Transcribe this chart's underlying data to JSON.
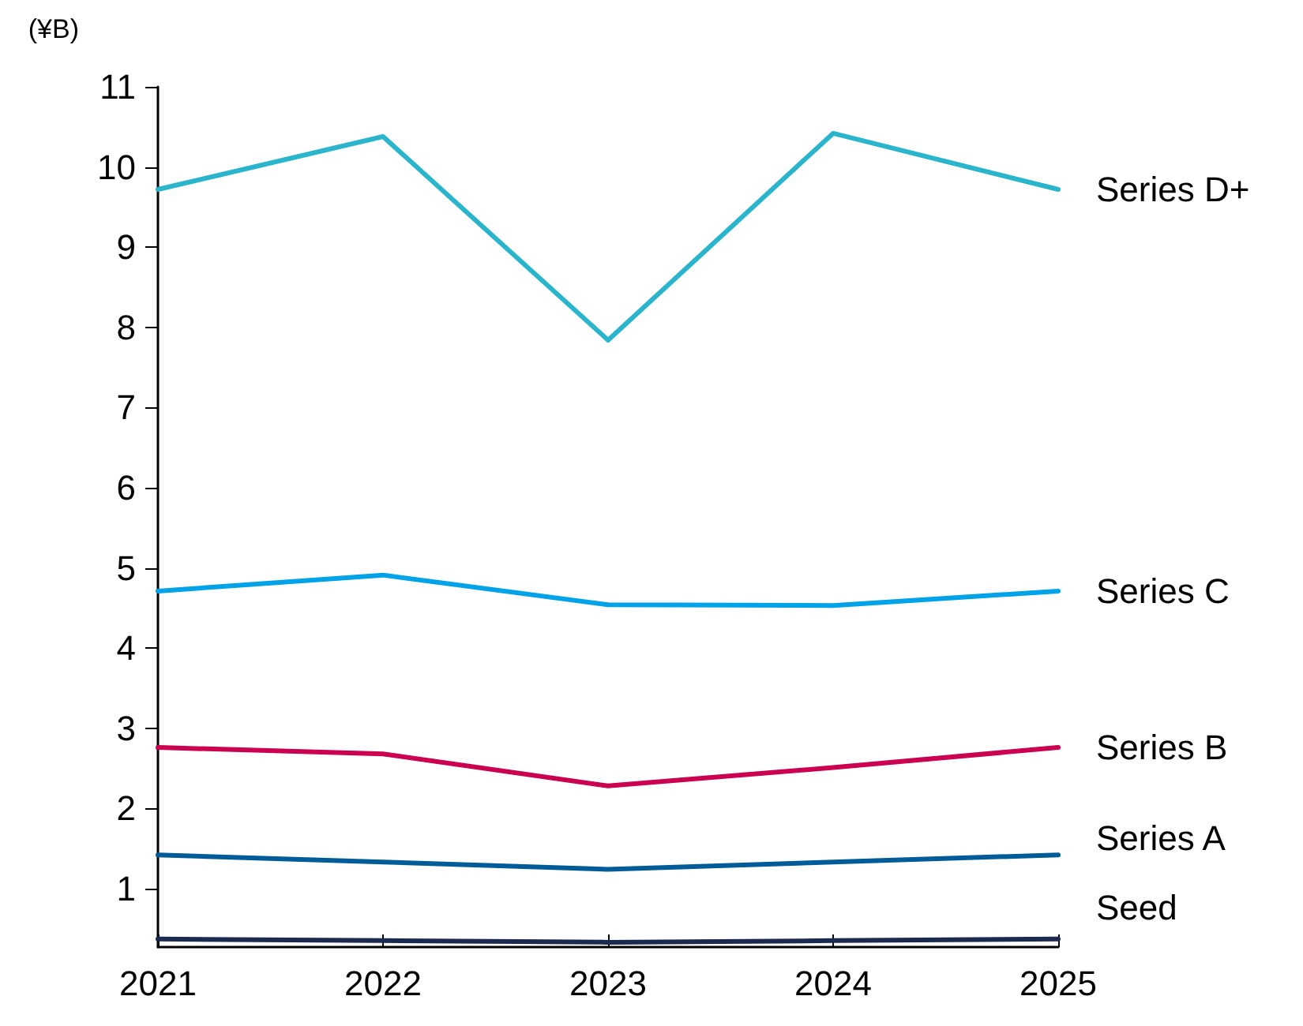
{
  "chart_data": {
    "type": "line",
    "ylabel": "(¥B)",
    "categories": [
      "2021",
      "2022",
      "2023",
      "2024",
      "2025"
    ],
    "series": [
      {
        "name": "Series D+",
        "color": "#2bb5cc",
        "values": [
          9.72,
          10.38,
          7.84,
          10.42,
          9.72
        ]
      },
      {
        "name": "Series C",
        "color": "#00a3e8",
        "values": [
          4.71,
          4.91,
          4.54,
          4.53,
          4.71
        ]
      },
      {
        "name": "Series B",
        "color": "#cc0050",
        "values": [
          2.76,
          2.68,
          2.28,
          2.51,
          2.76
        ]
      },
      {
        "name": "Series A",
        "color": "#005c99",
        "values": [
          1.42,
          1.33,
          1.24,
          1.33,
          1.42
        ]
      },
      {
        "name": "Seed",
        "color": "#1c2951",
        "values": [
          0.37,
          0.35,
          0.33,
          0.35,
          0.37
        ]
      }
    ],
    "ylim": [
      0.27,
      11
    ],
    "yticks": [
      1,
      2,
      3,
      4,
      5,
      6,
      7,
      8,
      9,
      10,
      11
    ],
    "grid": false,
    "legend": false,
    "marker": "none",
    "line_style": "solid"
  }
}
